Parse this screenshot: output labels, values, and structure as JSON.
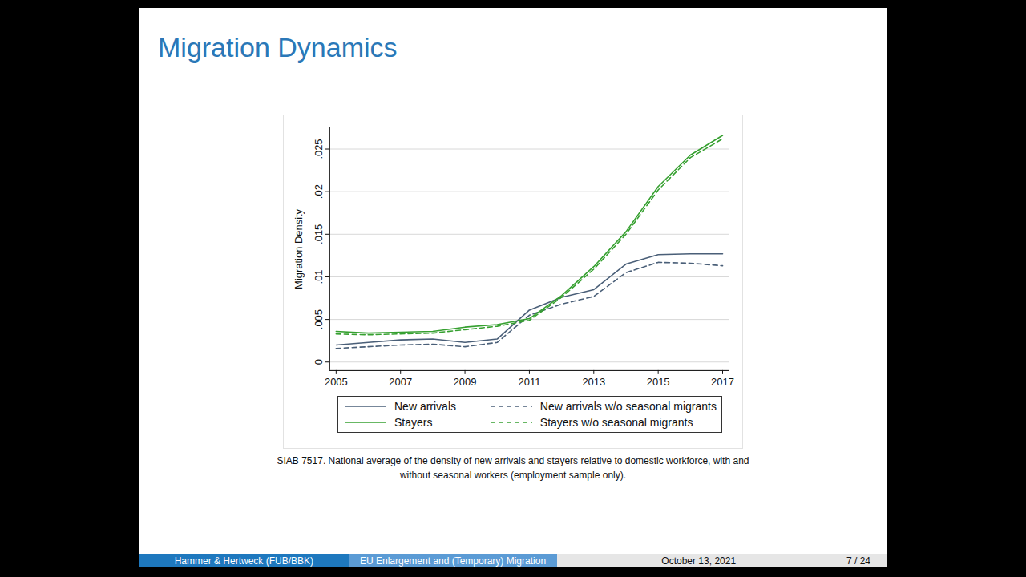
{
  "chart_data": {
    "type": "line",
    "title": "Migration Dynamics",
    "y_label": "Migration Density",
    "caption": "SIAB 7517. National average of the density of new arrivals and stayers relative to domestic workforce, with and without seasonal workers (employment sample only).",
    "footer": [
      "Hammer & Hertweck (FUB/BBK)",
      "EU Enlargement and (Temporary) Migration",
      "October 13, 2021",
      "7 / 24"
    ],
    "x": [
      2005,
      2006,
      2007,
      2008,
      2009,
      2010,
      2011,
      2012,
      2013,
      2014,
      2015,
      2016,
      2017
    ],
    "series": [
      {
        "name": "New arrivals",
        "color": "#4a5f78",
        "line_style": "solid",
        "values": [
          0.002,
          0.0023,
          0.0026,
          0.0027,
          0.0023,
          0.0027,
          0.0061,
          0.0076,
          0.0085,
          0.0115,
          0.0126,
          0.0127,
          0.0127
        ]
      },
      {
        "name": "New arrivals w/o seasonal migrants",
        "color": "#4a5f78",
        "line_style": "dashed",
        "values": [
          0.0016,
          0.0018,
          0.002,
          0.0021,
          0.0018,
          0.0023,
          0.0055,
          0.0068,
          0.0077,
          0.0105,
          0.0117,
          0.0116,
          0.0113
        ]
      },
      {
        "name": "Stayers",
        "color": "#36a030",
        "line_style": "solid",
        "values": [
          0.0036,
          0.0034,
          0.0035,
          0.0036,
          0.0041,
          0.0044,
          0.0051,
          0.0078,
          0.0112,
          0.0153,
          0.0206,
          0.0243,
          0.0266
        ]
      },
      {
        "name": "Stayers w/o seasonal migrants",
        "color": "#36a030",
        "line_style": "dashed",
        "values": [
          0.0033,
          0.0032,
          0.0033,
          0.0034,
          0.0038,
          0.0042,
          0.0049,
          0.0076,
          0.0109,
          0.015,
          0.0202,
          0.024,
          0.0262
        ]
      }
    ],
    "xlim": [
      2004.8,
      2017.2
    ],
    "xticks": [
      2005,
      2007,
      2009,
      2011,
      2013,
      2015,
      2017
    ],
    "ylim": [
      -0.001,
      0.0275
    ],
    "yticks": [
      0,
      {
        "value": 0.005,
        "label": ".005"
      },
      {
        "value": 0.01,
        "label": ".01"
      },
      {
        "value": 0.015,
        "label": ".015"
      },
      {
        "value": 0.02,
        "label": ".02"
      },
      {
        "value": 0.025,
        "label": ".025"
      }
    ],
    "grid": true,
    "legend": "bottom"
  }
}
